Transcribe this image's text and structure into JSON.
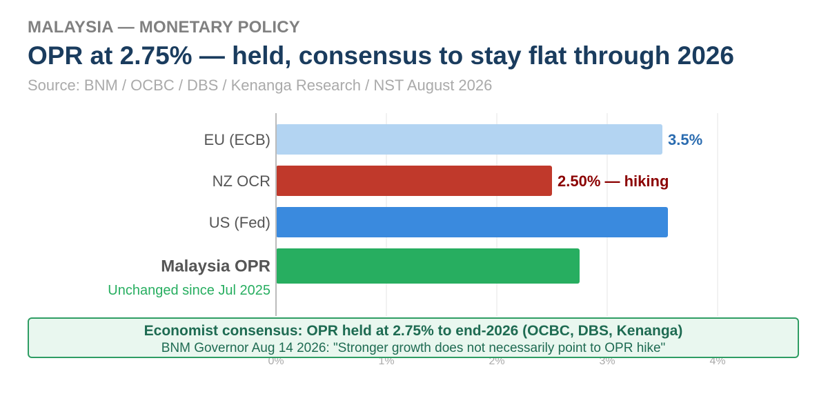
{
  "header": {
    "kicker": "MALAYSIA — MONETARY POLICY",
    "title": "OPR at 2.75% — held, consensus to stay flat through 2026",
    "source": "Source: BNM / OCBC / DBS / Kenanga Research / NST August 2026"
  },
  "chart_data": {
    "type": "bar",
    "orientation": "horizontal",
    "categories": [
      "EU (ECB)",
      "NZ OCR",
      "US (Fed)",
      "Malaysia OPR"
    ],
    "values": [
      3.5,
      2.5,
      3.55,
      2.75
    ],
    "value_labels": [
      "3.5%",
      "2.50% — hiking",
      "",
      ""
    ],
    "colors": [
      "#b3d4f2",
      "#c0392b",
      "#3a8ade",
      "#27ae60"
    ],
    "label_colors": [
      "#2b6cb0",
      "#8b0000",
      "",
      ""
    ],
    "category_notes": [
      "",
      "",
      "",
      "Unchanged since Jul 2025"
    ],
    "highlight_category": "Malaysia OPR",
    "xlim": [
      0,
      4
    ],
    "x_ticks": [
      "0%",
      "1%",
      "2%",
      "3%",
      "4%"
    ],
    "grid": true
  },
  "callout": {
    "main": "Economist consensus: OPR held at 2.75% to end-2026 (OCBC, DBS, Kenanga)",
    "sub": "BNM Governor Aug 14 2026: \"Stronger growth does not necessarily point to OPR hike\""
  },
  "colors": {
    "title": "#1a3c5e",
    "highlight": "#27ae60",
    "callout_border": "#2e9d63",
    "callout_bg": "#e9f7ef"
  }
}
